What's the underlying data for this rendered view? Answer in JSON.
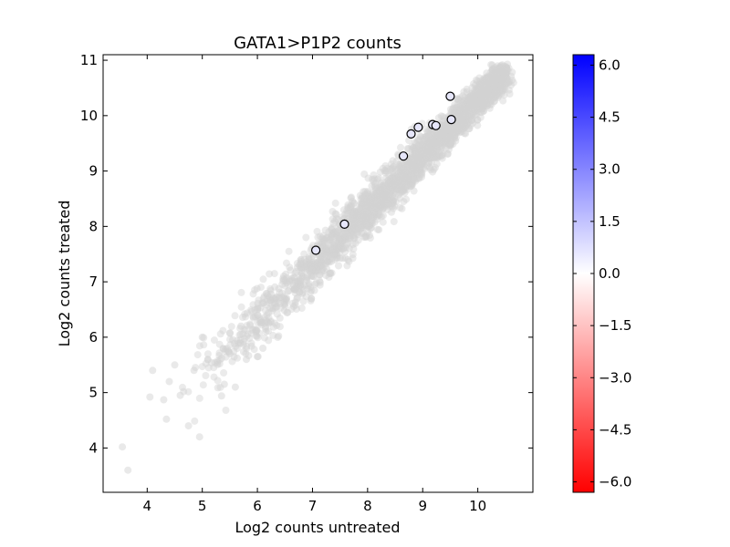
{
  "chart_data": [
    {
      "type": "scatter",
      "title": "GATA1>P1P2 counts",
      "xlabel": "Log2 counts untreated",
      "ylabel": "Log2 counts treated",
      "xlim": [
        3.2,
        11.0
      ],
      "ylim": [
        3.2,
        11.1
      ],
      "xticks": [
        4,
        5,
        6,
        7,
        8,
        9,
        10
      ],
      "yticks": [
        4,
        5,
        6,
        7,
        8,
        9,
        10,
        11
      ],
      "grid": false,
      "background_color": "#d3d3d3",
      "background_description": "dense diagonal cloud of light-grey points along y≈x from about 3.5 to 10.6",
      "series": [
        {
          "marker": "o",
          "face_color": "#e6e6fa",
          "edge_color": "#000000",
          "points": [
            [
              7.06,
              7.57
            ],
            [
              7.58,
              8.04
            ],
            [
              8.65,
              9.27
            ],
            [
              8.79,
              9.67
            ],
            [
              8.92,
              9.79
            ],
            [
              9.18,
              9.84
            ],
            [
              9.24,
              9.82
            ],
            [
              9.5,
              10.35
            ],
            [
              9.52,
              9.93
            ]
          ]
        }
      ]
    },
    {
      "type": "colorbar",
      "ticks": [
        "6.0",
        "4.5",
        "3.0",
        "1.5",
        "0.0",
        "−1.5",
        "−3.0",
        "−4.5",
        "−6.0"
      ],
      "range": [
        -6.3,
        6.3
      ],
      "colormap": "bwr_r",
      "top_color": "#0000ff",
      "mid_color": "#ffffff",
      "bottom_color": "#ff0000"
    }
  ]
}
